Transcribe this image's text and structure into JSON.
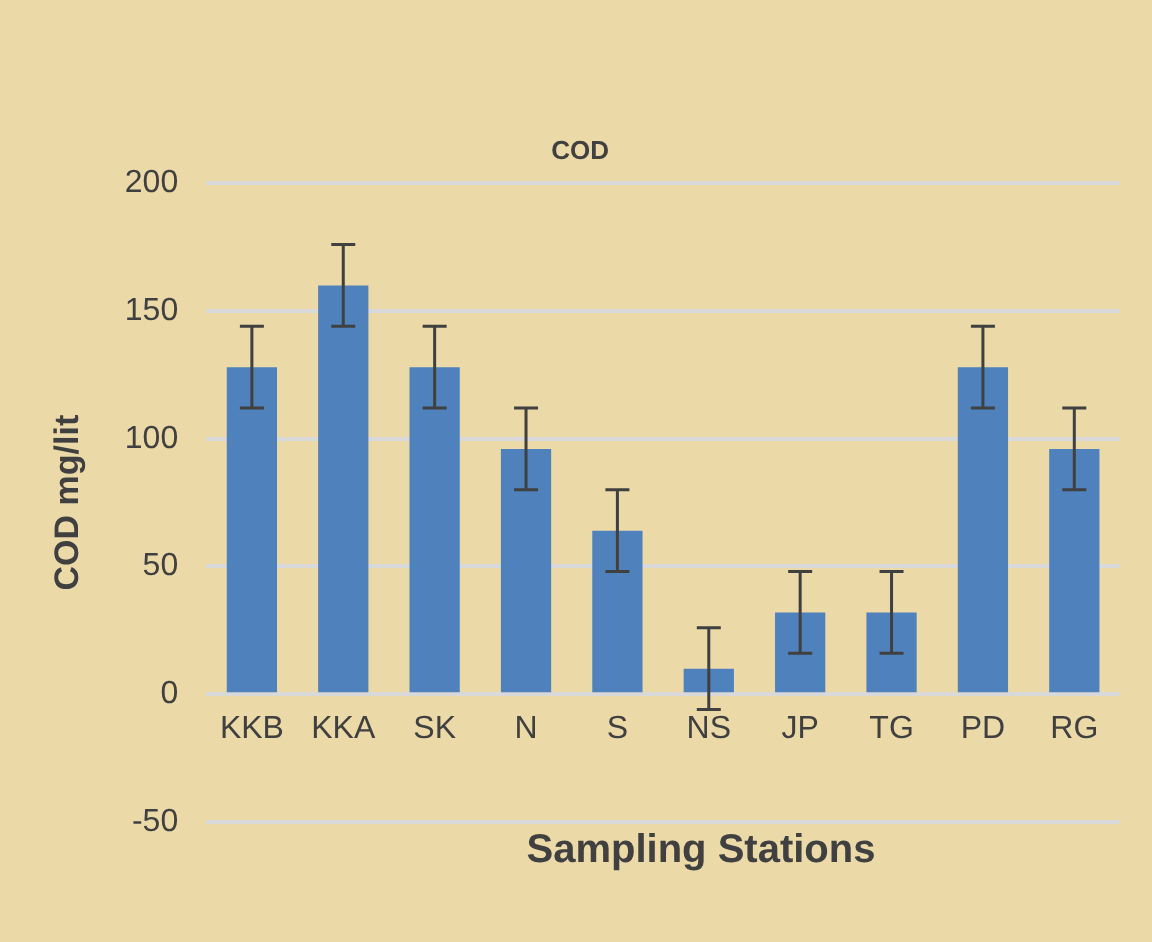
{
  "chart_data": {
    "type": "bar",
    "title": "COD",
    "xlabel": "Sampling Stations",
    "ylabel": "COD mg/lit",
    "categories": [
      "KKB",
      "KKA",
      "SK",
      "N",
      "S",
      "NS",
      "JP",
      "TG",
      "PD",
      "RG"
    ],
    "values": [
      128,
      160,
      128,
      96,
      64,
      10,
      32,
      32,
      128,
      96
    ],
    "errors": [
      16,
      16,
      16,
      16,
      16,
      16,
      16,
      16,
      16,
      16
    ],
    "color": "#4f81bd",
    "ylim": [
      -50,
      200
    ],
    "yticks": [
      -50,
      0,
      50,
      100,
      150,
      200
    ],
    "grid": "y",
    "legend": false
  }
}
